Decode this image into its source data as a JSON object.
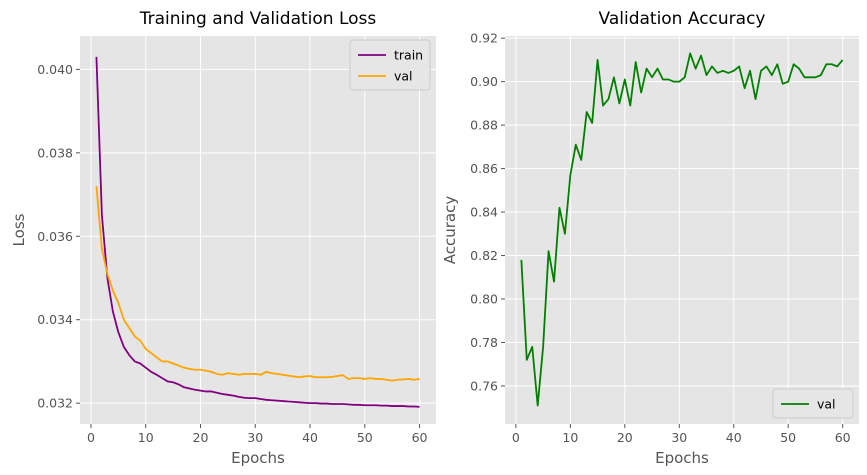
{
  "chart_data": [
    {
      "type": "line",
      "title": "Training and Validation Loss",
      "xlabel": "Epochs",
      "ylabel": "Loss",
      "xlim": [
        -2,
        63
      ],
      "ylim": [
        0.0315,
        0.0408
      ],
      "xticks": [
        0,
        10,
        20,
        30,
        40,
        50,
        60
      ],
      "yticks": [
        0.032,
        0.034,
        0.036,
        0.038,
        0.04
      ],
      "ytick_labels": [
        "0.032",
        "0.034",
        "0.036",
        "0.038",
        "0.040"
      ],
      "grid": true,
      "legend_position": "top-right",
      "colors": {
        "train": "#800080",
        "val": "#ffa500",
        "background": "#e5e5e5",
        "grid": "#ffffff"
      },
      "series": [
        {
          "name": "train",
          "color": "#800080",
          "x": [
            1,
            2,
            3,
            4,
            5,
            6,
            7,
            8,
            9,
            10,
            11,
            12,
            13,
            14,
            15,
            16,
            17,
            18,
            19,
            20,
            21,
            22,
            23,
            24,
            25,
            26,
            27,
            28,
            29,
            30,
            31,
            32,
            33,
            34,
            35,
            36,
            37,
            38,
            39,
            40,
            41,
            42,
            43,
            44,
            45,
            46,
            47,
            48,
            49,
            50,
            51,
            52,
            53,
            54,
            55,
            56,
            57,
            58,
            59,
            60
          ],
          "y": [
            0.0403,
            0.0365,
            0.035,
            0.0342,
            0.0337,
            0.03335,
            0.03315,
            0.033,
            0.03295,
            0.03285,
            0.03275,
            0.03268,
            0.0326,
            0.03252,
            0.0325,
            0.03245,
            0.03238,
            0.03235,
            0.03232,
            0.0323,
            0.03228,
            0.03228,
            0.03225,
            0.03222,
            0.0322,
            0.03218,
            0.03215,
            0.03213,
            0.03212,
            0.03212,
            0.0321,
            0.03208,
            0.03207,
            0.03206,
            0.03205,
            0.03204,
            0.03203,
            0.03202,
            0.03201,
            0.032,
            0.032,
            0.03199,
            0.03199,
            0.03198,
            0.03198,
            0.03198,
            0.03197,
            0.03196,
            0.03196,
            0.03195,
            0.03195,
            0.03195,
            0.03194,
            0.03194,
            0.03193,
            0.03193,
            0.03193,
            0.03192,
            0.03192,
            0.03191
          ]
        },
        {
          "name": "val",
          "color": "#ffa500",
          "x": [
            1,
            2,
            3,
            4,
            5,
            6,
            7,
            8,
            9,
            10,
            11,
            12,
            13,
            14,
            15,
            16,
            17,
            18,
            19,
            20,
            21,
            22,
            23,
            24,
            25,
            26,
            27,
            28,
            29,
            30,
            31,
            32,
            33,
            34,
            35,
            36,
            37,
            38,
            39,
            40,
            41,
            42,
            43,
            44,
            45,
            46,
            47,
            48,
            49,
            50,
            51,
            52,
            53,
            54,
            55,
            56,
            57,
            58,
            59,
            60
          ],
          "y": [
            0.0372,
            0.0357,
            0.0351,
            0.0347,
            0.0344,
            0.034,
            0.0338,
            0.0336,
            0.0335,
            0.0333,
            0.0332,
            0.0331,
            0.033,
            0.033,
            0.03295,
            0.0329,
            0.03285,
            0.03282,
            0.0328,
            0.0328,
            0.03278,
            0.03275,
            0.0327,
            0.03268,
            0.03272,
            0.0327,
            0.03268,
            0.0327,
            0.0327,
            0.0327,
            0.03268,
            0.03275,
            0.03272,
            0.0327,
            0.03268,
            0.03266,
            0.03264,
            0.03262,
            0.03264,
            0.03265,
            0.03262,
            0.03262,
            0.03262,
            0.03263,
            0.03265,
            0.03267,
            0.03258,
            0.0326,
            0.0326,
            0.03258,
            0.0326,
            0.03258,
            0.03258,
            0.03256,
            0.03254,
            0.03256,
            0.03257,
            0.03258,
            0.03256,
            0.03258
          ]
        }
      ]
    },
    {
      "type": "line",
      "title": "Validation Accuracy",
      "xlabel": "Epochs",
      "ylabel": "Accuracy",
      "xlim": [
        -2,
        63
      ],
      "ylim": [
        0.7425,
        0.921
      ],
      "xticks": [
        0,
        10,
        20,
        30,
        40,
        50,
        60
      ],
      "yticks": [
        0.76,
        0.78,
        0.8,
        0.82,
        0.84,
        0.86,
        0.88,
        0.9,
        0.92
      ],
      "ytick_labels": [
        "0.76",
        "0.78",
        "0.80",
        "0.82",
        "0.84",
        "0.86",
        "0.88",
        "0.90",
        "0.92"
      ],
      "grid": true,
      "legend_position": "bottom-right",
      "colors": {
        "val": "#008000",
        "background": "#e5e5e5",
        "grid": "#ffffff"
      },
      "series": [
        {
          "name": "val",
          "color": "#008000",
          "x": [
            1,
            2,
            3,
            4,
            5,
            6,
            7,
            8,
            9,
            10,
            11,
            12,
            13,
            14,
            15,
            16,
            17,
            18,
            19,
            20,
            21,
            22,
            23,
            24,
            25,
            26,
            27,
            28,
            29,
            30,
            31,
            32,
            33,
            34,
            35,
            36,
            37,
            38,
            39,
            40,
            41,
            42,
            43,
            44,
            45,
            46,
            47,
            48,
            49,
            50,
            51,
            52,
            53,
            54,
            55,
            56,
            57,
            58,
            59,
            60
          ],
          "y": [
            0.818,
            0.772,
            0.778,
            0.751,
            0.778,
            0.822,
            0.808,
            0.842,
            0.83,
            0.857,
            0.871,
            0.864,
            0.886,
            0.881,
            0.91,
            0.889,
            0.892,
            0.902,
            0.89,
            0.901,
            0.889,
            0.909,
            0.895,
            0.906,
            0.902,
            0.906,
            0.901,
            0.901,
            0.9,
            0.9,
            0.902,
            0.913,
            0.906,
            0.912,
            0.903,
            0.907,
            0.904,
            0.905,
            0.904,
            0.905,
            0.907,
            0.897,
            0.905,
            0.892,
            0.905,
            0.907,
            0.903,
            0.908,
            0.899,
            0.9,
            0.908,
            0.906,
            0.902,
            0.902,
            0.902,
            0.903,
            0.908,
            0.908,
            0.907,
            0.91
          ]
        }
      ]
    }
  ]
}
